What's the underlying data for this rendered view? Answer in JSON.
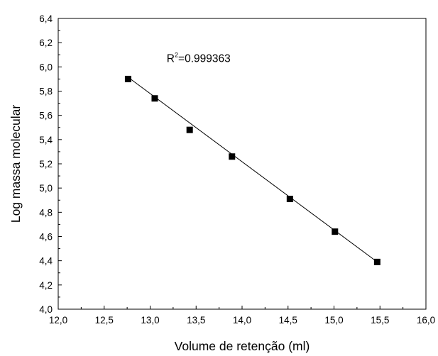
{
  "chart_data": {
    "type": "scatter",
    "title": "",
    "xlabel": "Volume de retenção (ml)",
    "ylabel": "Log massa molecular",
    "xlim": [
      12.0,
      16.0
    ],
    "ylim": [
      4.0,
      6.4
    ],
    "x_ticks": [
      "12,0",
      "12,5",
      "13,0",
      "13,5",
      "14,0",
      "14,5",
      "15,0",
      "15,5",
      "16,0"
    ],
    "y_ticks": [
      "4,0",
      "4,2",
      "4,4",
      "4,6",
      "4,8",
      "5,0",
      "5,2",
      "5,4",
      "5,6",
      "5,8",
      "6,0",
      "6,2",
      "6,4"
    ],
    "grid": false,
    "legend": "none",
    "series": [
      {
        "marker": "square",
        "color": "#000000",
        "points": [
          {
            "x": 12.76,
            "y": 5.9
          },
          {
            "x": 13.05,
            "y": 5.74
          },
          {
            "x": 13.43,
            "y": 5.48
          },
          {
            "x": 13.89,
            "y": 5.26
          },
          {
            "x": 14.52,
            "y": 4.91
          },
          {
            "x": 15.01,
            "y": 4.64
          },
          {
            "x": 15.47,
            "y": 4.39
          }
        ]
      }
    ],
    "fit_line": {
      "color": "#000000",
      "from": {
        "x": 12.76,
        "y": 5.915
      },
      "to": {
        "x": 15.47,
        "y": 4.39
      }
    },
    "annotation": {
      "base": "R",
      "superscript": "2",
      "text": "=0.999363",
      "x": 13.18,
      "y": 6.04
    }
  }
}
